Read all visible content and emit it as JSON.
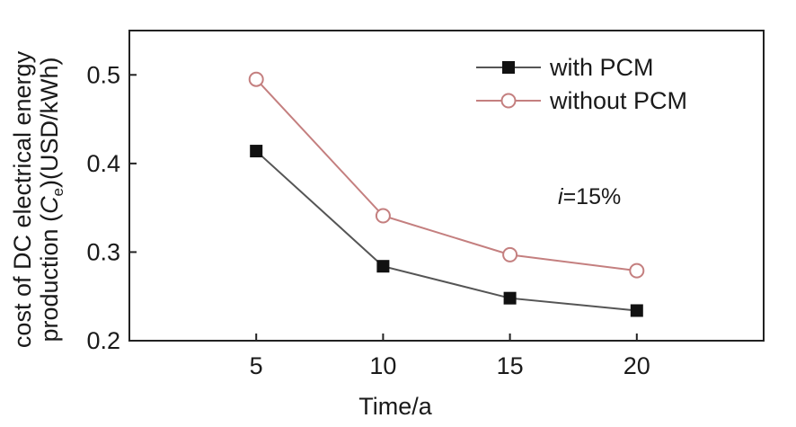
{
  "chart_data": {
    "type": "line",
    "title": "",
    "xlabel": "Time/a",
    "ylabel_line1": "cost of DC electrical energy",
    "ylabel_line2": {
      "pre": "production (",
      "sym": "C",
      "sub": "e",
      "post": ")(USD/kWh)"
    },
    "x": [
      5,
      10,
      15,
      20
    ],
    "xlim": [
      0,
      25
    ],
    "ylim": [
      0.2,
      0.55
    ],
    "xticks": [
      5,
      10,
      15,
      20
    ],
    "yticks": [
      0.2,
      0.3,
      0.4,
      0.5
    ],
    "xtick_labels": [
      "5",
      "10",
      "15",
      "20"
    ],
    "ytick_labels": [
      "0.2",
      "0.3",
      "0.4",
      "0.5"
    ],
    "grid": false,
    "legend_position": "top-right",
    "series": [
      {
        "name": "with PCM",
        "values": [
          0.414,
          0.284,
          0.248,
          0.234
        ],
        "color": "#555555",
        "marker": "filled-square",
        "marker_color": "#111111"
      },
      {
        "name": "without PCM",
        "values": [
          0.495,
          0.341,
          0.297,
          0.279
        ],
        "color": "#c47f7f",
        "marker": "open-circle",
        "marker_color": "#c47f7f"
      }
    ],
    "annotation": {
      "italic": "i",
      "text": "=15%"
    }
  }
}
